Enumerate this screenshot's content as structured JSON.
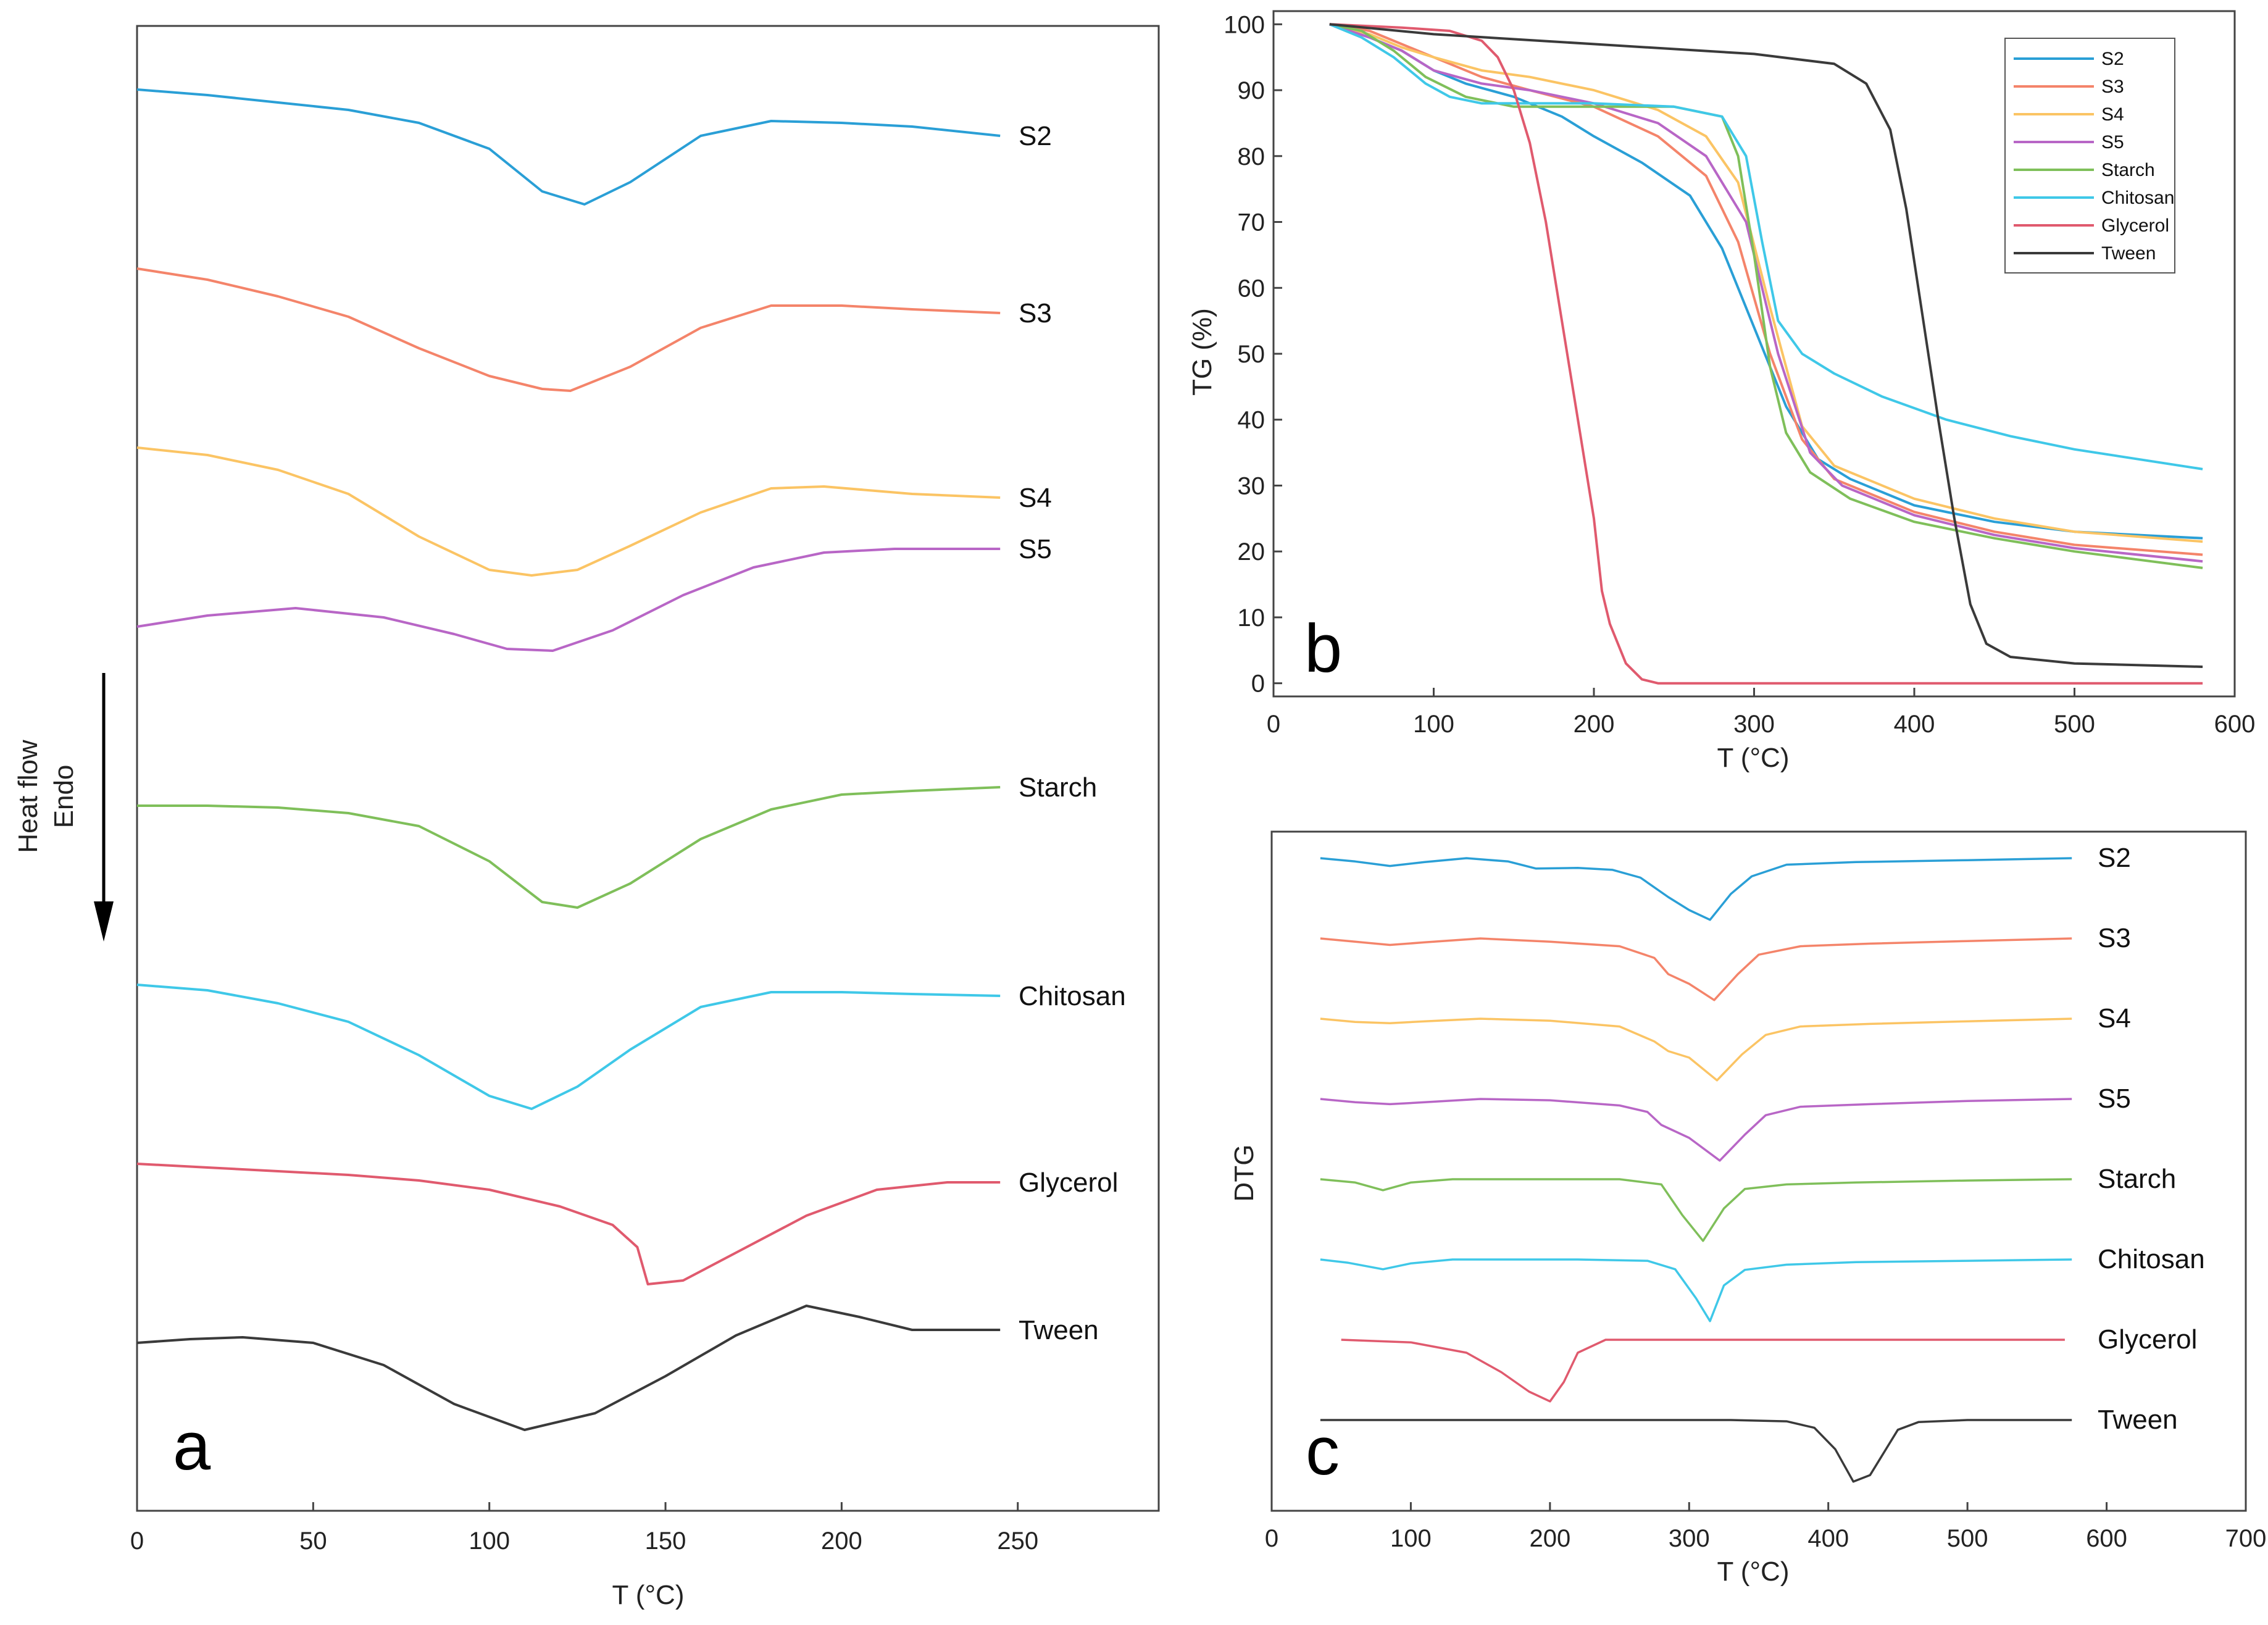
{
  "colors": {
    "S2": "#2a9fd6",
    "S3": "#f4846a",
    "S4": "#fbc464",
    "S5": "#b866c6",
    "Starch": "#7fbf5a",
    "Chitosan": "#3fc8e8",
    "Glycerol": "#e05a6e",
    "Tween": "#3a3a3a"
  },
  "chart_data": [
    {
      "panel": "a",
      "type": "line",
      "title": "",
      "xlabel": "T (°C)",
      "ylabel": "Heat flow\nEndo",
      "ylabel_line1": "Heat flow",
      "ylabel_line2": "Endo",
      "xlim": [
        0,
        290
      ],
      "xticks": [
        0,
        50,
        100,
        150,
        200,
        250
      ],
      "xtick_labels": [
        "0",
        "50",
        "100",
        "150",
        "200",
        "250"
      ],
      "offsets": [
        0,
        1,
        2,
        3,
        4,
        5,
        6,
        7
      ],
      "series": [
        {
          "name": "S2",
          "label": "S2",
          "x": [
            0,
            20,
            40,
            60,
            80,
            100,
            115,
            127,
            140,
            160,
            180,
            200,
            220,
            245
          ],
          "values": [
            0.0,
            0.03,
            0.07,
            0.11,
            0.18,
            0.32,
            0.55,
            0.62,
            0.5,
            0.25,
            0.17,
            0.18,
            0.2,
            0.25
          ]
        },
        {
          "name": "S3",
          "label": "S3",
          "x": [
            0,
            20,
            40,
            60,
            80,
            100,
            115,
            123,
            140,
            160,
            180,
            200,
            220,
            245
          ],
          "values": [
            0.0,
            0.06,
            0.15,
            0.26,
            0.43,
            0.58,
            0.65,
            0.66,
            0.53,
            0.32,
            0.2,
            0.2,
            0.22,
            0.24
          ]
        },
        {
          "name": "S4",
          "label": "S4",
          "x": [
            0,
            20,
            40,
            60,
            80,
            100,
            112,
            125,
            140,
            160,
            180,
            195,
            220,
            245
          ],
          "values": [
            0.0,
            0.04,
            0.12,
            0.25,
            0.48,
            0.66,
            0.69,
            0.66,
            0.53,
            0.35,
            0.22,
            0.21,
            0.25,
            0.27
          ]
        },
        {
          "name": "S5",
          "label": "S5",
          "x": [
            0,
            20,
            45,
            70,
            90,
            105,
            118,
            135,
            155,
            175,
            195,
            215,
            245
          ],
          "values": [
            0.0,
            -0.06,
            -0.1,
            -0.05,
            0.04,
            0.12,
            0.13,
            0.02,
            -0.17,
            -0.32,
            -0.4,
            -0.42,
            -0.42
          ]
        },
        {
          "name": "Starch",
          "label": "Starch",
          "x": [
            0,
            20,
            40,
            60,
            80,
            100,
            115,
            125,
            140,
            160,
            180,
            200,
            220,
            245
          ],
          "values": [
            0.0,
            0.0,
            0.01,
            0.04,
            0.11,
            0.3,
            0.52,
            0.55,
            0.42,
            0.18,
            0.02,
            -0.06,
            -0.08,
            -0.1
          ]
        },
        {
          "name": "Chitosan",
          "label": "Chitosan",
          "x": [
            0,
            20,
            40,
            60,
            80,
            100,
            112,
            125,
            140,
            160,
            180,
            200,
            220,
            245
          ],
          "values": [
            0.0,
            0.03,
            0.1,
            0.2,
            0.38,
            0.6,
            0.67,
            0.55,
            0.35,
            0.12,
            0.04,
            0.04,
            0.05,
            0.06
          ]
        },
        {
          "name": "Glycerol",
          "label": "Glycerol",
          "x": [
            0,
            20,
            40,
            60,
            80,
            100,
            120,
            135,
            142,
            145,
            155,
            170,
            190,
            210,
            230,
            245
          ],
          "values": [
            0.0,
            0.02,
            0.04,
            0.06,
            0.09,
            0.14,
            0.23,
            0.33,
            0.45,
            0.65,
            0.63,
            0.48,
            0.28,
            0.14,
            0.1,
            0.1
          ]
        },
        {
          "name": "Tween",
          "label": "Tween",
          "x": [
            0,
            15,
            30,
            50,
            70,
            90,
            110,
            130,
            150,
            170,
            190,
            205,
            220,
            245
          ],
          "values": [
            0.0,
            -0.02,
            -0.03,
            0.0,
            0.12,
            0.33,
            0.47,
            0.38,
            0.18,
            -0.04,
            -0.2,
            -0.14,
            -0.07,
            -0.07
          ]
        }
      ]
    },
    {
      "panel": "b",
      "type": "line",
      "title": "",
      "xlabel": "T (°C)",
      "ylabel": "TG (%)",
      "xlim": [
        0,
        600
      ],
      "ylim": [
        -2,
        102
      ],
      "xticks": [
        0,
        100,
        200,
        300,
        400,
        500,
        600
      ],
      "xtick_labels": [
        "0",
        "100",
        "200",
        "300",
        "400",
        "500",
        "600"
      ],
      "yticks": [
        0,
        10,
        20,
        30,
        40,
        50,
        60,
        70,
        80,
        90,
        100
      ],
      "ytick_labels": [
        "0",
        "10",
        "20",
        "30",
        "40",
        "50",
        "60",
        "70",
        "80",
        "90",
        "100"
      ],
      "legend_position": "top-right",
      "series": [
        {
          "name": "S2",
          "label": "S2",
          "x": [
            35,
            60,
            80,
            100,
            120,
            150,
            180,
            200,
            230,
            260,
            280,
            300,
            320,
            340,
            360,
            400,
            450,
            500,
            580
          ],
          "values": [
            100,
            98,
            96,
            93,
            91,
            89,
            86,
            83,
            79,
            74,
            66,
            54,
            42,
            34,
            31,
            27,
            24.5,
            23,
            22
          ]
        },
        {
          "name": "S3",
          "label": "S3",
          "x": [
            35,
            60,
            80,
            100,
            130,
            160,
            200,
            240,
            270,
            290,
            310,
            330,
            350,
            400,
            450,
            500,
            580
          ],
          "values": [
            100,
            99,
            97,
            95,
            92,
            90,
            87.5,
            83,
            77,
            67,
            50,
            37,
            31,
            26,
            23,
            21,
            19.5
          ]
        },
        {
          "name": "S4",
          "label": "S4",
          "x": [
            35,
            60,
            80,
            100,
            130,
            160,
            200,
            240,
            270,
            290,
            310,
            330,
            350,
            400,
            450,
            500,
            580
          ],
          "values": [
            100,
            98.5,
            96.5,
            95,
            93,
            92,
            90,
            87,
            83,
            76,
            57,
            39,
            33,
            28,
            25,
            23,
            21.5
          ]
        },
        {
          "name": "S5",
          "label": "S5",
          "x": [
            35,
            60,
            80,
            100,
            130,
            160,
            200,
            240,
            270,
            295,
            315,
            335,
            355,
            400,
            450,
            500,
            580
          ],
          "values": [
            100,
            98,
            96,
            93,
            91,
            90,
            88,
            85,
            80,
            70,
            50,
            35,
            30,
            25.5,
            22.5,
            20.5,
            18.5
          ]
        },
        {
          "name": "Starch",
          "label": "Starch",
          "x": [
            35,
            55,
            75,
            95,
            120,
            150,
            200,
            250,
            280,
            290,
            300,
            310,
            320,
            335,
            360,
            400,
            450,
            500,
            580
          ],
          "values": [
            100,
            99,
            96,
            92,
            89,
            87.5,
            87.5,
            87.5,
            86,
            80,
            65,
            48,
            38,
            32,
            28,
            24.5,
            22,
            20,
            17.5
          ]
        },
        {
          "name": "Chitosan",
          "label": "Chitosan",
          "x": [
            35,
            55,
            75,
            95,
            110,
            130,
            160,
            200,
            250,
            280,
            295,
            305,
            315,
            330,
            350,
            380,
            420,
            460,
            500,
            540,
            580
          ],
          "values": [
            100,
            98,
            95,
            91,
            89,
            88,
            88,
            88,
            87.5,
            86,
            80,
            67,
            55,
            50,
            47,
            43.5,
            40,
            37.5,
            35.5,
            34,
            32.5
          ]
        },
        {
          "name": "Glycerol",
          "label": "Glycerol",
          "x": [
            35,
            80,
            110,
            130,
            140,
            150,
            160,
            170,
            180,
            190,
            200,
            205,
            210,
            220,
            230,
            240,
            300,
            580
          ],
          "values": [
            100,
            99.5,
            99,
            97.5,
            95,
            90,
            82,
            70,
            55,
            40,
            25,
            14,
            9,
            3,
            0.6,
            0,
            0,
            0
          ]
        },
        {
          "name": "Tween",
          "label": "Tween",
          "x": [
            35,
            100,
            200,
            300,
            350,
            370,
            385,
            395,
            405,
            415,
            425,
            435,
            445,
            460,
            500,
            580
          ],
          "values": [
            100,
            98.5,
            97,
            95.5,
            94,
            91,
            84,
            72,
            56,
            40,
            25,
            12,
            6,
            4,
            3,
            2.5
          ]
        }
      ]
    },
    {
      "panel": "c",
      "type": "line",
      "title": "",
      "xlabel": "T (°C)",
      "ylabel": "DTG",
      "xlim": [
        0,
        700
      ],
      "xticks": [
        0,
        100,
        200,
        300,
        400,
        500,
        600,
        700
      ],
      "xtick_labels": [
        "0",
        "100",
        "200",
        "300",
        "400",
        "500",
        "600",
        "700"
      ],
      "offsets": [
        0,
        1,
        2,
        3,
        4,
        5,
        6,
        7
      ],
      "series": [
        {
          "name": "S2",
          "label": "S2",
          "x": [
            35,
            60,
            85,
            110,
            140,
            170,
            190,
            220,
            245,
            265,
            285,
            300,
            315,
            330,
            345,
            370,
            420,
            500,
            575
          ],
          "values": [
            0,
            0.05,
            0.12,
            0.06,
            0.0,
            0.05,
            0.16,
            0.15,
            0.18,
            0.3,
            0.6,
            0.8,
            0.95,
            0.55,
            0.28,
            0.1,
            0.06,
            0.03,
            0.0
          ]
        },
        {
          "name": "S3",
          "label": "S3",
          "x": [
            35,
            60,
            85,
            110,
            150,
            200,
            250,
            275,
            285,
            300,
            318,
            335,
            350,
            380,
            430,
            500,
            575
          ],
          "values": [
            0,
            0.05,
            0.1,
            0.06,
            0.0,
            0.05,
            0.12,
            0.3,
            0.55,
            0.7,
            0.95,
            0.55,
            0.25,
            0.12,
            0.08,
            0.04,
            0.0
          ]
        },
        {
          "name": "S4",
          "label": "S4",
          "x": [
            35,
            60,
            85,
            110,
            150,
            200,
            250,
            275,
            285,
            300,
            320,
            338,
            355,
            380,
            430,
            500,
            575
          ],
          "values": [
            0,
            0.05,
            0.07,
            0.04,
            0.0,
            0.03,
            0.12,
            0.35,
            0.5,
            0.6,
            0.95,
            0.55,
            0.25,
            0.12,
            0.08,
            0.04,
            0.0
          ]
        },
        {
          "name": "S5",
          "label": "S5",
          "x": [
            35,
            60,
            85,
            110,
            150,
            200,
            250,
            270,
            280,
            300,
            322,
            340,
            355,
            380,
            430,
            500,
            575
          ],
          "values": [
            0,
            0.05,
            0.08,
            0.05,
            0.0,
            0.02,
            0.1,
            0.2,
            0.4,
            0.6,
            0.95,
            0.55,
            0.25,
            0.12,
            0.08,
            0.03,
            0.0
          ]
        },
        {
          "name": "Starch",
          "label": "Starch",
          "x": [
            35,
            60,
            80,
            100,
            130,
            160,
            200,
            250,
            280,
            295,
            310,
            325,
            340,
            370,
            420,
            500,
            575
          ],
          "values": [
            0,
            0.05,
            0.17,
            0.05,
            0.0,
            0.0,
            0.0,
            0.0,
            0.08,
            0.55,
            0.95,
            0.45,
            0.15,
            0.08,
            0.05,
            0.02,
            0.0
          ]
        },
        {
          "name": "Chitosan",
          "label": "Chitosan",
          "x": [
            35,
            55,
            80,
            100,
            130,
            170,
            220,
            270,
            290,
            305,
            315,
            325,
            340,
            370,
            420,
            500,
            575
          ],
          "values": [
            0,
            0.05,
            0.15,
            0.06,
            0.0,
            0.0,
            0.0,
            0.02,
            0.15,
            0.6,
            0.95,
            0.4,
            0.16,
            0.08,
            0.04,
            0.02,
            0.0
          ]
        },
        {
          "name": "Glycerol",
          "label": "Glycerol",
          "x": [
            50,
            100,
            140,
            165,
            185,
            200,
            210,
            220,
            240,
            300,
            570
          ],
          "values": [
            0,
            0.04,
            0.2,
            0.5,
            0.8,
            0.95,
            0.65,
            0.2,
            0.0,
            0.0,
            0.0
          ]
        },
        {
          "name": "Tween",
          "label": "Tween",
          "x": [
            35,
            150,
            250,
            330,
            370,
            390,
            405,
            418,
            430,
            440,
            450,
            465,
            500,
            575
          ],
          "values": [
            0,
            0.0,
            0.0,
            0.0,
            0.02,
            0.12,
            0.45,
            0.95,
            0.85,
            0.5,
            0.15,
            0.03,
            0.0,
            0.0
          ]
        }
      ]
    }
  ]
}
